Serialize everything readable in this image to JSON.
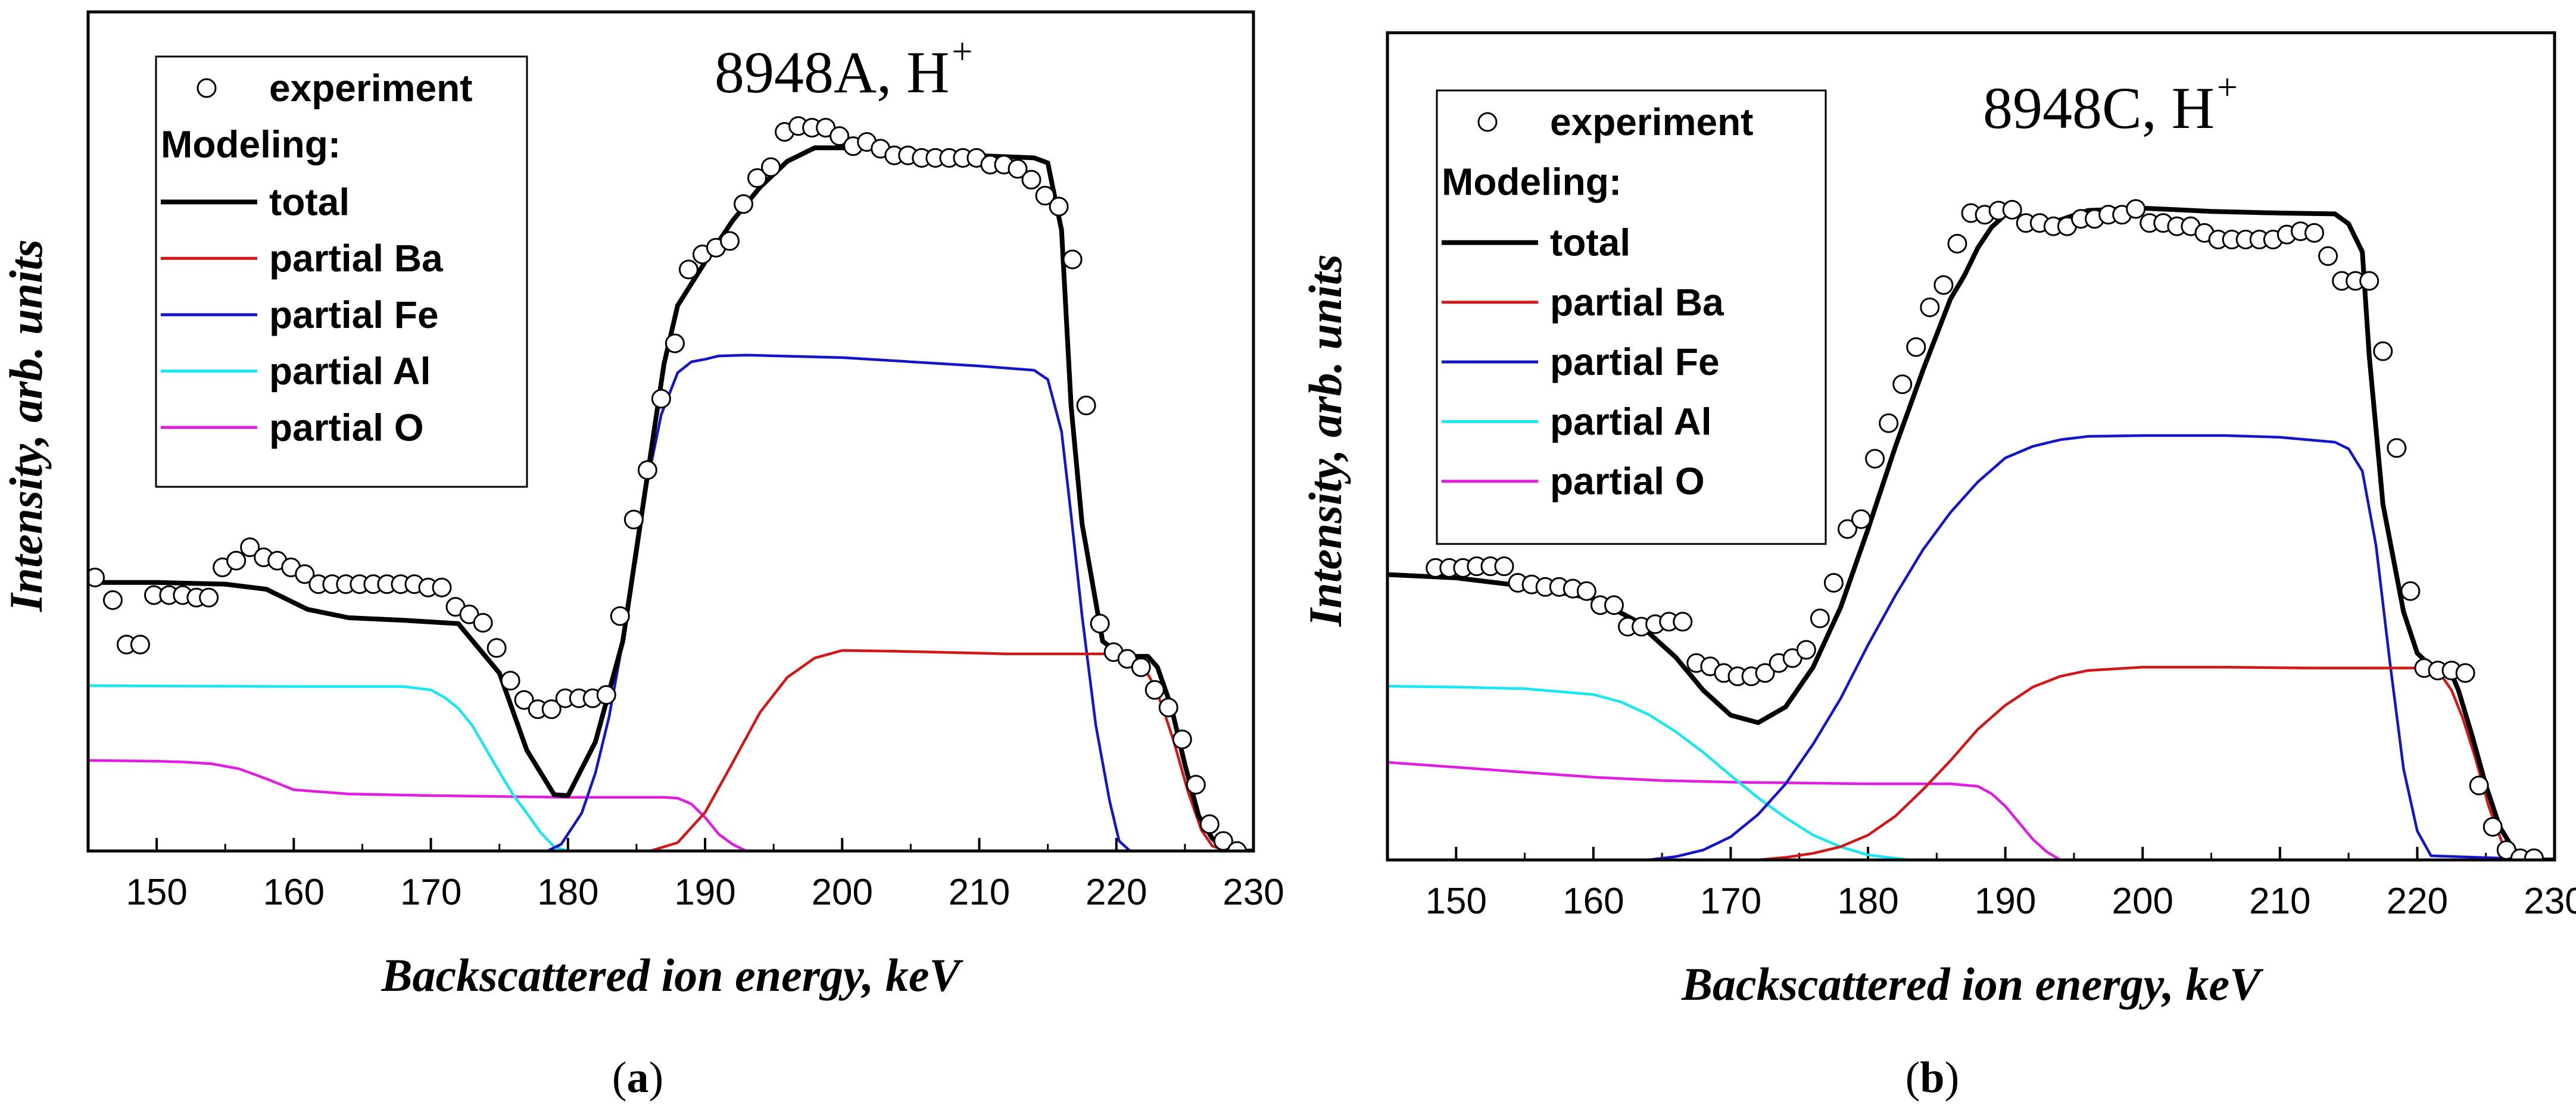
{
  "chart_data": [
    {
      "type": "line",
      "panel_label": "a",
      "title": "8948A, H",
      "title_superscript": "+",
      "xlabel": "Backscattered ion energy, keV",
      "ylabel": "Intensity, arb. units",
      "xlim": [
        145,
        230
      ],
      "ylim": [
        0,
        1
      ],
      "x_ticks": [
        150,
        160,
        170,
        180,
        190,
        200,
        210,
        220,
        230
      ],
      "legend": {
        "placement": "top-left",
        "experiment": "experiment",
        "heading": "Modeling:",
        "entries": [
          "total",
          "partial Ba",
          "partial Fe",
          "partial Al",
          "partial O"
        ]
      },
      "experiment": {
        "x": [
          145.5,
          146.8,
          147.8,
          148.8,
          149.8,
          150.9,
          151.9,
          152.9,
          153.8,
          154.8,
          155.8,
          156.8,
          157.8,
          158.8,
          159.8,
          160.8,
          161.8,
          162.8,
          163.8,
          164.8,
          165.8,
          166.8,
          167.8,
          168.8,
          169.8,
          170.8,
          171.8,
          172.8,
          173.8,
          174.8,
          175.8,
          176.8,
          177.8,
          178.8,
          179.8,
          180.8,
          181.8,
          182.8,
          183.8,
          184.8,
          185.8,
          186.8,
          187.8,
          188.8,
          189.8,
          190.8,
          191.8,
          192.8,
          193.8,
          194.8,
          195.8,
          196.8,
          197.8,
          198.8,
          199.8,
          200.8,
          201.8,
          202.8,
          203.8,
          204.8,
          205.8,
          206.8,
          207.8,
          208.8,
          209.8,
          210.8,
          211.8,
          212.8,
          213.8,
          214.8,
          215.8,
          216.8,
          217.8,
          218.8,
          219.8,
          220.8,
          221.8,
          222.8,
          223.8,
          224.8,
          225.8,
          226.8,
          227.8,
          228.8
        ],
        "y": [
          0.326,
          0.299,
          0.246,
          0.246,
          0.305,
          0.305,
          0.305,
          0.302,
          0.302,
          0.338,
          0.346,
          0.362,
          0.35,
          0.346,
          0.338,
          0.33,
          0.318,
          0.318,
          0.318,
          0.318,
          0.318,
          0.318,
          0.318,
          0.318,
          0.314,
          0.314,
          0.291,
          0.282,
          0.272,
          0.242,
          0.203,
          0.18,
          0.169,
          0.169,
          0.182,
          0.182,
          0.182,
          0.186,
          0.28,
          0.395,
          0.454,
          0.539,
          0.605,
          0.693,
          0.711,
          0.719,
          0.727,
          0.771,
          0.802,
          0.815,
          0.857,
          0.864,
          0.862,
          0.862,
          0.852,
          0.84,
          0.845,
          0.837,
          0.829,
          0.829,
          0.826,
          0.826,
          0.826,
          0.826,
          0.826,
          0.818,
          0.818,
          0.813,
          0.8,
          0.781,
          0.768,
          0.705,
          0.531,
          0.271,
          0.237,
          0.229,
          0.219,
          0.192,
          0.171,
          0.133,
          0.079,
          0.032,
          0.012,
          0.0
        ]
      },
      "series": [
        {
          "name": "total",
          "color": "#000000",
          "x": [
            145,
            150,
            155,
            158,
            161,
            164,
            168,
            172,
            175,
            177,
            179,
            180,
            182,
            184,
            185,
            186,
            187,
            188,
            190,
            192,
            194,
            196,
            198,
            202,
            208,
            214,
            215,
            216,
            216.7,
            217.5,
            219,
            220.5,
            221.5,
            222.3,
            223,
            224,
            225,
            226,
            227,
            228,
            229,
            230
          ],
          "y": [
            0.32,
            0.32,
            0.318,
            0.312,
            0.288,
            0.278,
            0.275,
            0.271,
            0.212,
            0.12,
            0.067,
            0.066,
            0.13,
            0.25,
            0.36,
            0.47,
            0.58,
            0.65,
            0.702,
            0.751,
            0.791,
            0.822,
            0.838,
            0.838,
            0.83,
            0.826,
            0.82,
            0.74,
            0.53,
            0.39,
            0.25,
            0.232,
            0.232,
            0.232,
            0.219,
            0.172,
            0.103,
            0.042,
            0.015,
            0.0,
            0.0,
            0.0
          ]
        },
        {
          "name": "partial Ba",
          "color": "#d01818",
          "x": [
            145,
            186,
            188,
            190,
            192,
            194,
            196,
            198,
            200,
            204,
            212,
            220,
            221,
            221.8,
            222.5,
            223.3,
            224.2,
            225.2,
            226.2,
            227,
            228,
            230
          ],
          "y": [
            0,
            0,
            0.01,
            0.046,
            0.105,
            0.165,
            0.207,
            0.23,
            0.239,
            0.238,
            0.235,
            0.235,
            0.232,
            0.224,
            0.205,
            0.175,
            0.13,
            0.072,
            0.025,
            0.006,
            0,
            0
          ]
        },
        {
          "name": "partial Fe",
          "color": "#1414c8",
          "x": [
            145,
            178.5,
            179.5,
            181,
            182,
            183,
            184,
            185,
            185.8,
            186.8,
            188,
            189,
            190,
            191,
            193,
            200,
            210,
            214,
            215,
            216,
            216.7,
            217.5,
            218.5,
            219.5,
            220.2,
            221,
            230
          ],
          "y": [
            0,
            0,
            0.008,
            0.045,
            0.093,
            0.16,
            0.25,
            0.35,
            0.44,
            0.52,
            0.57,
            0.583,
            0.586,
            0.59,
            0.591,
            0.588,
            0.578,
            0.573,
            0.562,
            0.5,
            0.4,
            0.28,
            0.15,
            0.06,
            0.012,
            0,
            0
          ]
        },
        {
          "name": "partial Al",
          "color": "#18e6f0",
          "x": [
            145,
            160,
            168,
            170,
            171,
            172,
            173,
            174,
            175,
            176,
            177,
            178,
            179,
            180,
            182,
            230
          ],
          "y": [
            0.197,
            0.196,
            0.196,
            0.192,
            0.183,
            0.17,
            0.15,
            0.122,
            0.094,
            0.067,
            0.045,
            0.022,
            0.005,
            0,
            0,
            0
          ]
        },
        {
          "name": "partial O",
          "color": "#e01ee0",
          "x": [
            145,
            150,
            152,
            154,
            156,
            158,
            160,
            164,
            170,
            180,
            187,
            188,
            189,
            190,
            191,
            192,
            193,
            230
          ],
          "y": [
            0.108,
            0.107,
            0.106,
            0.104,
            0.098,
            0.086,
            0.073,
            0.068,
            0.066,
            0.064,
            0.064,
            0.063,
            0.056,
            0.04,
            0.02,
            0.008,
            0,
            0
          ]
        }
      ]
    },
    {
      "type": "line",
      "panel_label": "b",
      "title": "8948C, H",
      "title_superscript": "+",
      "xlabel": "Backscattered ion energy, keV",
      "ylabel": "Intensity, arb. units",
      "xlim": [
        145,
        230
      ],
      "ylim": [
        0,
        1
      ],
      "x_ticks": [
        150,
        160,
        170,
        180,
        190,
        200,
        210,
        220,
        230
      ],
      "legend": {
        "placement": "top-left",
        "experiment": "experiment",
        "heading": "Modeling:",
        "entries": [
          "total",
          "partial Ba",
          "partial Fe",
          "partial Al",
          "partial O"
        ]
      },
      "experiment": {
        "x": [
          148.5,
          149.5,
          150.5,
          151.5,
          152.5,
          153.5,
          154.5,
          155.5,
          156.5,
          157.5,
          158.5,
          159.5,
          160.5,
          161.5,
          162.5,
          163.5,
          164.5,
          165.5,
          166.5,
          167.5,
          168.5,
          169.5,
          170.5,
          171.5,
          172.5,
          173.5,
          174.5,
          175.5,
          176.5,
          177.5,
          178.5,
          179.5,
          180.5,
          181.5,
          182.5,
          183.5,
          184.5,
          185.5,
          186.5,
          187.5,
          188.5,
          189.5,
          190.5,
          191.5,
          192.5,
          193.5,
          194.5,
          195.5,
          196.5,
          197.5,
          198.5,
          199.5,
          200.5,
          201.5,
          202.5,
          203.5,
          204.5,
          205.5,
          206.5,
          207.5,
          208.5,
          209.5,
          210.5,
          211.5,
          212.5,
          213.5,
          214.5,
          215.5,
          216.5,
          217.5,
          218.5,
          219.5,
          220.5,
          221.5,
          222.5,
          223.5,
          224.5,
          225.5,
          226.5,
          227.5,
          228.5
        ],
        "y": [
          0.353,
          0.353,
          0.353,
          0.355,
          0.355,
          0.355,
          0.335,
          0.333,
          0.33,
          0.33,
          0.328,
          0.325,
          0.308,
          0.308,
          0.282,
          0.282,
          0.285,
          0.288,
          0.288,
          0.238,
          0.234,
          0.226,
          0.222,
          0.222,
          0.226,
          0.238,
          0.244,
          0.254,
          0.292,
          0.335,
          0.4,
          0.412,
          0.485,
          0.528,
          0.575,
          0.62,
          0.668,
          0.695,
          0.745,
          0.782,
          0.78,
          0.785,
          0.786,
          0.77,
          0.77,
          0.766,
          0.766,
          0.775,
          0.775,
          0.78,
          0.78,
          0.787,
          0.77,
          0.77,
          0.766,
          0.766,
          0.758,
          0.75,
          0.75,
          0.75,
          0.75,
          0.75,
          0.756,
          0.76,
          0.758,
          0.73,
          0.7,
          0.7,
          0.7,
          0.615,
          0.498,
          0.325,
          0.232,
          0.229,
          0.229,
          0.226,
          0.09,
          0.04,
          0.012,
          0.002,
          0.002
        ]
      },
      "series": [
        {
          "name": "total",
          "color": "#000000",
          "x": [
            145,
            150,
            155,
            160,
            163,
            166,
            168,
            170,
            172,
            174,
            176,
            178,
            180,
            182,
            184,
            186,
            187,
            188,
            189,
            190,
            191,
            193,
            196,
            200,
            205,
            210,
            214,
            215,
            216,
            216.5,
            217.5,
            219,
            220,
            221,
            221.5,
            222.5,
            223,
            224,
            225,
            226,
            227,
            228,
            229,
            230
          ],
          "y": [
            0.345,
            0.341,
            0.331,
            0.316,
            0.29,
            0.245,
            0.205,
            0.175,
            0.166,
            0.185,
            0.233,
            0.305,
            0.4,
            0.5,
            0.592,
            0.678,
            0.706,
            0.74,
            0.765,
            0.78,
            0.779,
            0.768,
            0.785,
            0.788,
            0.784,
            0.782,
            0.781,
            0.769,
            0.735,
            0.61,
            0.43,
            0.3,
            0.25,
            0.234,
            0.23,
            0.225,
            0.205,
            0.15,
            0.09,
            0.04,
            0.013,
            0.002,
            0,
            0
          ]
        },
        {
          "name": "partial Ba",
          "color": "#d01818",
          "x": [
            172,
            174,
            176,
            178,
            180,
            182,
            184,
            186,
            188,
            190,
            192,
            194,
            196,
            198,
            200,
            202,
            206,
            212,
            216,
            220,
            221,
            221.8,
            222.5,
            223.3,
            224.2,
            225.2,
            226.2,
            227,
            228,
            230
          ],
          "y": [
            0,
            0.003,
            0.008,
            0.016,
            0.03,
            0.053,
            0.085,
            0.12,
            0.158,
            0.187,
            0.209,
            0.222,
            0.229,
            0.231,
            0.233,
            0.233,
            0.233,
            0.232,
            0.232,
            0.232,
            0.229,
            0.222,
            0.205,
            0.172,
            0.125,
            0.065,
            0.02,
            0.006,
            0,
            0
          ]
        },
        {
          "name": "partial Fe",
          "color": "#1414c8",
          "x": [
            164,
            166,
            168,
            170,
            172,
            174,
            176,
            178,
            180,
            182,
            184,
            186,
            188,
            190,
            192,
            194,
            196,
            200,
            206,
            210,
            214,
            215,
            216,
            217,
            218,
            219,
            220,
            221,
            230
          ],
          "y": [
            0,
            0.004,
            0.012,
            0.028,
            0.055,
            0.092,
            0.14,
            0.195,
            0.26,
            0.32,
            0.375,
            0.42,
            0.457,
            0.486,
            0.5,
            0.508,
            0.512,
            0.513,
            0.513,
            0.511,
            0.505,
            0.497,
            0.47,
            0.38,
            0.24,
            0.11,
            0.035,
            0.005,
            0
          ]
        },
        {
          "name": "partial Al",
          "color": "#18e6f0",
          "x": [
            145,
            150,
            155,
            160,
            162,
            164,
            166,
            168,
            170,
            172,
            174,
            176,
            178,
            180,
            183
          ],
          "y": [
            0.21,
            0.209,
            0.207,
            0.2,
            0.191,
            0.176,
            0.155,
            0.13,
            0.102,
            0.075,
            0.051,
            0.03,
            0.016,
            0.006,
            0
          ]
        },
        {
          "name": "partial O",
          "color": "#e01ee0",
          "x": [
            145,
            150,
            155,
            160,
            165,
            170,
            180,
            186,
            188,
            189,
            190,
            191,
            192,
            193,
            194
          ],
          "y": [
            0.118,
            0.112,
            0.106,
            0.1,
            0.096,
            0.094,
            0.092,
            0.092,
            0.089,
            0.08,
            0.065,
            0.045,
            0.025,
            0.01,
            0
          ]
        }
      ]
    }
  ]
}
